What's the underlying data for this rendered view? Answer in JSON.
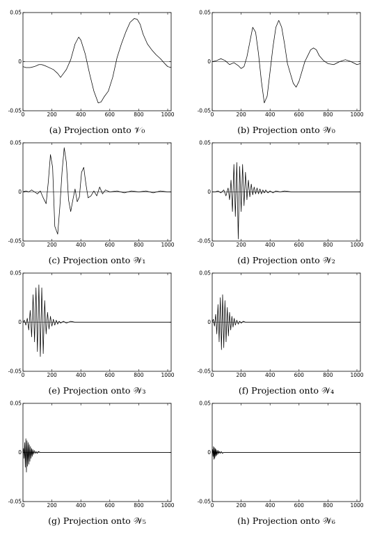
{
  "chart_data": [
    {
      "type": "line",
      "caption": "(a) Projection onto 𝒱₀",
      "xlim": [
        0,
        1024
      ],
      "ylim": [
        -0.05,
        0.05
      ],
      "xticks": [
        0,
        200,
        400,
        600,
        800,
        1000
      ],
      "yticks": [
        0.05,
        0,
        -0.05
      ],
      "ytick_labels": [
        "0.05",
        "0",
        "-0.05"
      ],
      "series": [
        {
          "x": [
            0,
            20,
            50,
            80,
            110,
            130,
            150,
            180,
            210,
            240,
            260,
            280,
            300,
            330,
            360,
            385,
            400,
            430,
            460,
            490,
            520,
            540,
            560,
            590,
            620,
            650,
            680,
            710,
            740,
            770,
            790,
            810,
            830,
            860,
            890,
            920,
            950,
            980,
            1000,
            1024
          ],
          "y": [
            -0.005,
            -0.006,
            -0.006,
            -0.005,
            -0.003,
            -0.003,
            -0.004,
            -0.006,
            -0.008,
            -0.012,
            -0.016,
            -0.012,
            -0.008,
            0.002,
            0.018,
            0.025,
            0.022,
            0.008,
            -0.012,
            -0.03,
            -0.042,
            -0.041,
            -0.036,
            -0.03,
            -0.016,
            0.004,
            0.018,
            0.03,
            0.04,
            0.044,
            0.043,
            0.038,
            0.028,
            0.018,
            0.012,
            0.007,
            0.003,
            -0.002,
            -0.005,
            -0.006
          ]
        }
      ]
    },
    {
      "type": "line",
      "caption": "(b) Projection onto 𝒲₀",
      "xlim": [
        0,
        1024
      ],
      "ylim": [
        -0.05,
        0.05
      ],
      "xticks": [
        0,
        200,
        400,
        600,
        800,
        1000
      ],
      "yticks": [
        0.05,
        0,
        -0.05
      ],
      "ytick_labels": [
        "0.05",
        "0",
        "-0.05"
      ],
      "series": [
        {
          "x": [
            0,
            30,
            60,
            90,
            120,
            150,
            180,
            200,
            220,
            240,
            260,
            280,
            300,
            320,
            340,
            360,
            380,
            400,
            420,
            440,
            460,
            480,
            500,
            520,
            540,
            560,
            580,
            600,
            620,
            640,
            660,
            680,
            700,
            720,
            740,
            770,
            800,
            840,
            880,
            920,
            960,
            1000,
            1024
          ],
          "y": [
            0,
            0.001,
            0.003,
            0.001,
            -0.003,
            -0.001,
            -0.004,
            -0.007,
            -0.005,
            0.005,
            0.02,
            0.035,
            0.03,
            0.008,
            -0.02,
            -0.042,
            -0.035,
            -0.01,
            0.015,
            0.035,
            0.042,
            0.035,
            0.018,
            -0.002,
            -0.012,
            -0.022,
            -0.026,
            -0.02,
            -0.01,
            0,
            0.006,
            0.012,
            0.014,
            0.012,
            0.006,
            0.001,
            -0.002,
            -0.003,
            0,
            0.002,
            0,
            -0.003,
            -0.002
          ]
        }
      ]
    },
    {
      "type": "line",
      "caption": "(c) Projection onto 𝒲₁",
      "xlim": [
        0,
        1024
      ],
      "ylim": [
        -0.05,
        0.05
      ],
      "xticks": [
        0,
        200,
        400,
        600,
        800,
        1000
      ],
      "yticks": [
        0.05,
        0,
        -0.05
      ],
      "ytick_labels": [
        "0.05",
        "0",
        "-0.05"
      ],
      "series": [
        {
          "x": [
            0,
            20,
            40,
            60,
            80,
            100,
            120,
            140,
            160,
            175,
            190,
            205,
            220,
            240,
            255,
            270,
            285,
            300,
            315,
            330,
            345,
            360,
            375,
            390,
            405,
            420,
            435,
            450,
            470,
            490,
            510,
            530,
            550,
            570,
            600,
            650,
            700,
            750,
            800,
            850,
            900,
            950,
            1000,
            1024
          ],
          "y": [
            0,
            0.001,
            0,
            0.002,
            0,
            -0.002,
            0.001,
            -0.006,
            -0.012,
            0.01,
            0.038,
            0.025,
            -0.035,
            -0.043,
            -0.015,
            0.02,
            0.045,
            0.03,
            -0.008,
            -0.02,
            -0.008,
            0.003,
            -0.01,
            -0.005,
            0.02,
            0.025,
            0.008,
            -0.006,
            -0.004,
            0.001,
            -0.004,
            0.005,
            -0.002,
            0.002,
            0,
            0.001,
            -0.001,
            0.001,
            0,
            0.001,
            -0.001,
            0.001,
            0,
            0
          ]
        }
      ]
    },
    {
      "type": "line",
      "caption": "(d) Projection onto 𝒲₂",
      "xlim": [
        0,
        1024
      ],
      "ylim": [
        -0.05,
        0.05
      ],
      "xticks": [
        0,
        200,
        400,
        600,
        800,
        1000
      ],
      "yticks": [
        0.05,
        0,
        -0.05
      ],
      "ytick_labels": [
        "0.05",
        "0",
        "-0.05"
      ],
      "series": [
        {
          "x": [
            0,
            20,
            40,
            60,
            80,
            95,
            110,
            120,
            130,
            140,
            150,
            160,
            170,
            180,
            190,
            200,
            210,
            220,
            230,
            240,
            250,
            260,
            270,
            280,
            290,
            300,
            310,
            320,
            330,
            340,
            350,
            360,
            370,
            385,
            400,
            420,
            440,
            470,
            500,
            550,
            600,
            700,
            800,
            900,
            1000,
            1024
          ],
          "y": [
            0,
            0,
            0.001,
            -0.001,
            0.002,
            -0.004,
            0.004,
            -0.008,
            0.012,
            -0.02,
            0.028,
            -0.025,
            0.03,
            -0.048,
            0.026,
            -0.02,
            0.028,
            -0.014,
            0.02,
            -0.008,
            0.012,
            -0.005,
            0.008,
            -0.003,
            0.005,
            -0.002,
            0.004,
            -0.002,
            0.003,
            -0.002,
            0.002,
            -0.001,
            0.002,
            -0.001,
            0.001,
            -0.001,
            0.001,
            0,
            0.001,
            0,
            0,
            0,
            0,
            0,
            0,
            0
          ]
        }
      ]
    },
    {
      "type": "line",
      "caption": "(e) Projection onto 𝒲₃",
      "xlim": [
        0,
        1024
      ],
      "ylim": [
        -0.05,
        0.05
      ],
      "xticks": [
        0,
        200,
        400,
        600,
        800,
        1000
      ],
      "yticks": [
        0.05,
        0,
        -0.05
      ],
      "ytick_labels": [
        "0.05",
        "0",
        "-0.05"
      ],
      "series": [
        {
          "x": [
            0,
            10,
            20,
            30,
            40,
            50,
            60,
            70,
            80,
            90,
            100,
            110,
            120,
            130,
            140,
            150,
            160,
            170,
            180,
            190,
            200,
            210,
            220,
            230,
            240,
            250,
            260,
            280,
            300,
            330,
            360,
            400,
            500,
            600,
            800,
            1000,
            1024
          ],
          "y": [
            0,
            0.002,
            -0.003,
            0.004,
            -0.008,
            0.012,
            -0.015,
            0.028,
            -0.02,
            0.035,
            -0.03,
            0.038,
            -0.035,
            0.035,
            -0.032,
            0.022,
            -0.012,
            0.01,
            -0.007,
            0.006,
            -0.004,
            0.003,
            -0.003,
            0.002,
            -0.002,
            0.001,
            -0.001,
            0.001,
            -0.001,
            0.001,
            0,
            0,
            0,
            0,
            0,
            0,
            0
          ]
        }
      ]
    },
    {
      "type": "line",
      "caption": "(f) Projection onto 𝒲₄",
      "xlim": [
        0,
        1024
      ],
      "ylim": [
        -0.05,
        0.05
      ],
      "xticks": [
        0,
        200,
        400,
        600,
        800,
        1000
      ],
      "yticks": [
        0.05,
        0,
        -0.05
      ],
      "ytick_labels": [
        "0.05",
        "0",
        "-0.05"
      ],
      "series": [
        {
          "x": [
            0,
            8,
            16,
            24,
            32,
            40,
            48,
            56,
            64,
            72,
            80,
            88,
            96,
            104,
            112,
            120,
            128,
            136,
            144,
            152,
            160,
            170,
            180,
            190,
            200,
            215,
            230,
            260,
            300,
            400,
            600,
            800,
            1000,
            1024
          ],
          "y": [
            0,
            0.003,
            -0.004,
            0.008,
            -0.012,
            0.018,
            -0.02,
            0.025,
            -0.028,
            0.028,
            -0.026,
            0.022,
            -0.02,
            0.015,
            -0.014,
            0.01,
            -0.008,
            0.006,
            -0.005,
            0.004,
            -0.003,
            0.002,
            -0.002,
            0.001,
            -0.001,
            0.001,
            0,
            0,
            0,
            0,
            0,
            0,
            0,
            0
          ]
        }
      ]
    },
    {
      "type": "line",
      "caption": "(g) Projection onto 𝒲₅",
      "xlim": [
        0,
        1024
      ],
      "ylim": [
        -0.05,
        0.05
      ],
      "xticks": [
        0,
        200,
        400,
        600,
        800,
        1000
      ],
      "yticks": [
        0.05,
        0,
        -0.05
      ],
      "ytick_labels": [
        "0.05",
        "0",
        "-0.05"
      ],
      "series": [
        {
          "x": [
            0,
            4,
            8,
            12,
            16,
            20,
            24,
            28,
            32,
            36,
            40,
            44,
            48,
            52,
            56,
            60,
            64,
            68,
            72,
            78,
            84,
            90,
            98,
            106,
            120,
            140,
            180,
            250,
            400,
            600,
            800,
            1000,
            1024
          ],
          "y": [
            0,
            0.004,
            -0.006,
            0.01,
            -0.015,
            0.014,
            -0.02,
            0.012,
            -0.014,
            0.01,
            -0.012,
            0.008,
            -0.009,
            0.006,
            -0.006,
            0.004,
            -0.004,
            0.003,
            -0.002,
            0.002,
            -0.001,
            0.001,
            -0.001,
            0.001,
            0,
            0,
            0,
            0,
            0,
            0,
            0,
            0,
            0
          ]
        }
      ]
    },
    {
      "type": "line",
      "caption": "(h) Projection onto 𝒲₆",
      "xlim": [
        0,
        1024
      ],
      "ylim": [
        -0.05,
        0.05
      ],
      "xticks": [
        0,
        200,
        400,
        600,
        800,
        1000
      ],
      "yticks": [
        0.05,
        0,
        -0.05
      ],
      "ytick_labels": [
        "0.05",
        "0",
        "-0.05"
      ],
      "series": [
        {
          "x": [
            0,
            3,
            6,
            9,
            12,
            15,
            18,
            21,
            24,
            27,
            30,
            34,
            38,
            42,
            46,
            50,
            56,
            62,
            70,
            80,
            100,
            150,
            250,
            400,
            600,
            800,
            1000,
            1024
          ],
          "y": [
            0,
            0.003,
            -0.004,
            0.006,
            -0.007,
            0.005,
            -0.006,
            0.004,
            -0.004,
            0.003,
            -0.003,
            0.002,
            -0.002,
            0.002,
            -0.001,
            0.001,
            -0.001,
            0.001,
            -0.001,
            0,
            0,
            0,
            0,
            0,
            0,
            0,
            0,
            0
          ]
        }
      ]
    }
  ]
}
